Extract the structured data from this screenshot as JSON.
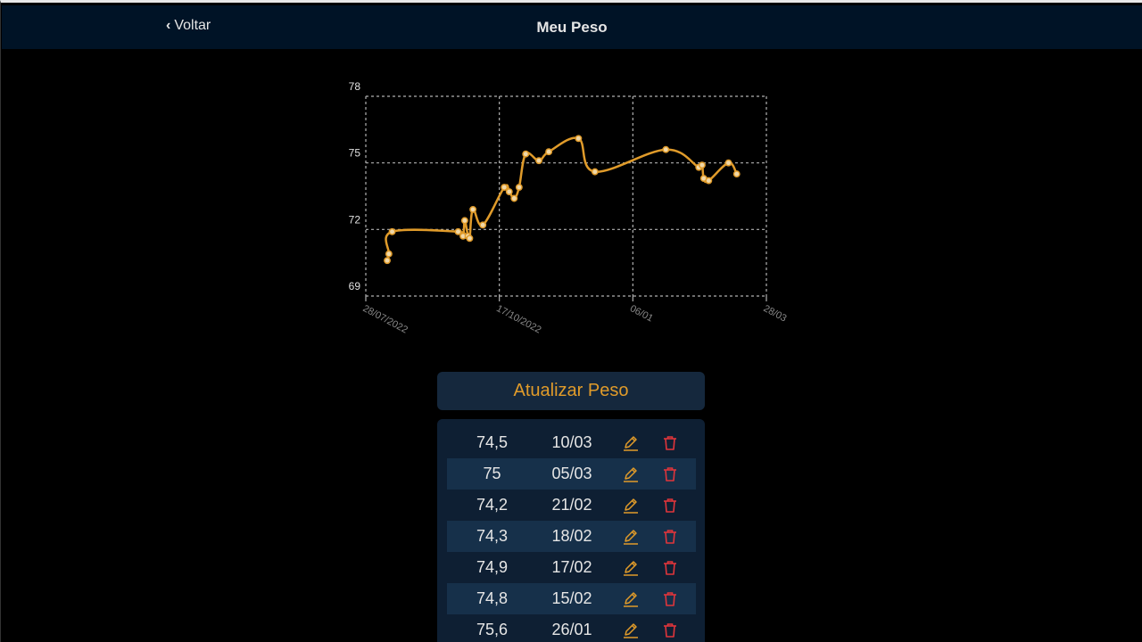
{
  "header": {
    "back_label": "Voltar",
    "title": "Meu Peso"
  },
  "colors": {
    "line": "#e09b2a",
    "grid": "#b0b0b0",
    "header_bg": "#001326",
    "delete": "#e0353b"
  },
  "chart_data": {
    "type": "line",
    "title": "",
    "xlabel": "",
    "ylabel": "",
    "grid": true,
    "legend": "none",
    "ylim": [
      69,
      78
    ],
    "yticks": [
      69,
      72,
      75,
      78
    ],
    "xlim": [
      "2022-07-28",
      "2023-03-28"
    ],
    "xtick_labels": [
      "28/07/2022",
      "17/10/2022",
      "06/01",
      "28/03"
    ],
    "series": [
      {
        "x": [
          "2022-08-10",
          "2022-08-11",
          "2022-08-13",
          "2022-09-22",
          "2022-09-25",
          "2022-09-26",
          "2022-09-28",
          "2022-09-29",
          "2022-10-01",
          "2022-10-07",
          "2022-10-20",
          "2022-10-23",
          "2022-10-26",
          "2022-10-29",
          "2022-11-02",
          "2022-11-10",
          "2022-11-16",
          "2022-12-04",
          "2022-12-14",
          "2023-01-26",
          "2023-02-15",
          "2023-02-17",
          "2023-02-18",
          "2023-02-21",
          "2023-03-05",
          "2023-03-10"
        ],
        "values": [
          70.6,
          70.9,
          71.9,
          71.9,
          71.7,
          72.4,
          71.7,
          71.6,
          72.9,
          72.2,
          73.9,
          73.7,
          73.4,
          73.9,
          75.4,
          75.1,
          75.5,
          76.1,
          74.6,
          75.6,
          74.8,
          74.9,
          74.3,
          74.2,
          75.0,
          74.5
        ]
      }
    ]
  },
  "update_button_label": "Atualizar Peso",
  "entries": [
    {
      "weight": "74,5",
      "date": "10/03"
    },
    {
      "weight": "75",
      "date": "05/03"
    },
    {
      "weight": "74,2",
      "date": "21/02"
    },
    {
      "weight": "74,3",
      "date": "18/02"
    },
    {
      "weight": "74,9",
      "date": "17/02"
    },
    {
      "weight": "74,8",
      "date": "15/02"
    },
    {
      "weight": "75,6",
      "date": "26/01"
    }
  ],
  "icons": {
    "back": "chevron-left-icon",
    "edit": "pencil-icon",
    "delete": "trash-icon"
  }
}
